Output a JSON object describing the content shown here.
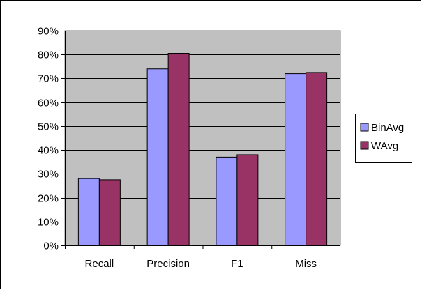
{
  "chart_data": {
    "type": "bar",
    "title": "",
    "xlabel": "",
    "ylabel": "",
    "categories": [
      "Recall",
      "Precision",
      "F1",
      "Miss"
    ],
    "series": [
      {
        "name": "BinAvg",
        "values": [
          0.28,
          0.74,
          0.37,
          0.72
        ],
        "color": "#9999ff"
      },
      {
        "name": "WAvg",
        "values": [
          0.275,
          0.805,
          0.38,
          0.725
        ],
        "color": "#993366"
      }
    ],
    "ylim": [
      0,
      0.9
    ],
    "yticks": [
      "0%",
      "10%",
      "20%",
      "30%",
      "40%",
      "50%",
      "60%",
      "70%",
      "80%",
      "90%"
    ],
    "grid": true,
    "legend": "right",
    "plot_background": "#c0c0c0"
  }
}
